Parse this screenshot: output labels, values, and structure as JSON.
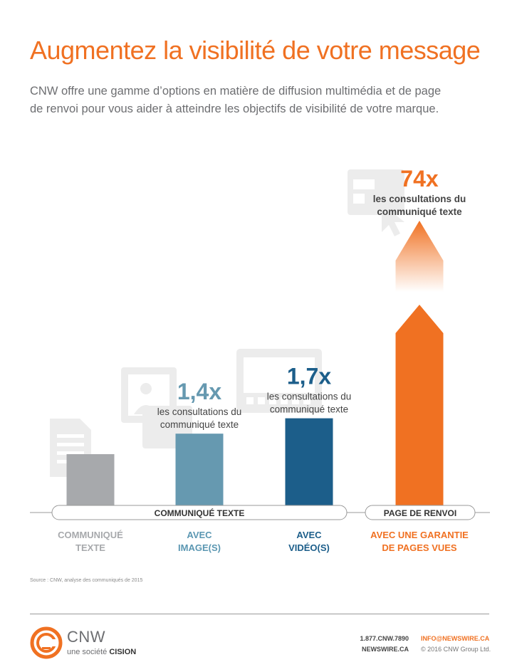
{
  "header": {
    "title": "Augmentez la visibilité de votre message",
    "subtitle": "CNW offre une gamme d’options en matière de diffusion multimédia et de page de renvoi pour vous aider à atteindre les objectifs de visibilité de votre marque."
  },
  "chart_data": {
    "type": "bar",
    "categories": [
      "COMMUNIQUÉ TEXTE",
      "AVEC IMAGE(S)",
      "AVEC VIDÉO(S)",
      "AVEC UNE GARANTIE DE PAGES VUES"
    ],
    "category_lines": [
      [
        "COMMUNIQUÉ",
        "TEXTE"
      ],
      [
        "AVEC",
        "IMAGE(S)"
      ],
      [
        "AVEC",
        "VIDÉO(S)"
      ],
      [
        "AVEC UNE GARANTIE",
        "DE PAGES VUES"
      ]
    ],
    "values": [
      1,
      1.4,
      1.7,
      74
    ],
    "value_labels": [
      "",
      "1,4x",
      "1,7x",
      "74x"
    ],
    "annotation_lines": [
      "les consultations du",
      "communiqué texte"
    ],
    "colors": [
      "#a7a9ac",
      "#6699b0",
      "#1c5e8a",
      "#f07122"
    ],
    "groups": [
      {
        "label": "COMMUNIQUÉ TEXTE",
        "categories": [
          0,
          1,
          2
        ]
      },
      {
        "label": "PAGE DE RENVOI",
        "categories": [
          3
        ]
      }
    ],
    "last_bar_broken": true,
    "icons": [
      "document-icon",
      "image-icon",
      "video-icon",
      "webpage-cursor-icon"
    ]
  },
  "footer": {
    "source": "Source : CNW, analyse des communiqués de 2015",
    "logo_name": "CNW",
    "logo_tagline_prefix": "une société",
    "logo_tagline_brand": "CISION",
    "phone": "1.877.CNW.7890",
    "website": "NEWSWIRE.CA",
    "email": "INFO@NEWSWIRE.CA",
    "copyright": "© 2016 CNW Group Ltd."
  }
}
